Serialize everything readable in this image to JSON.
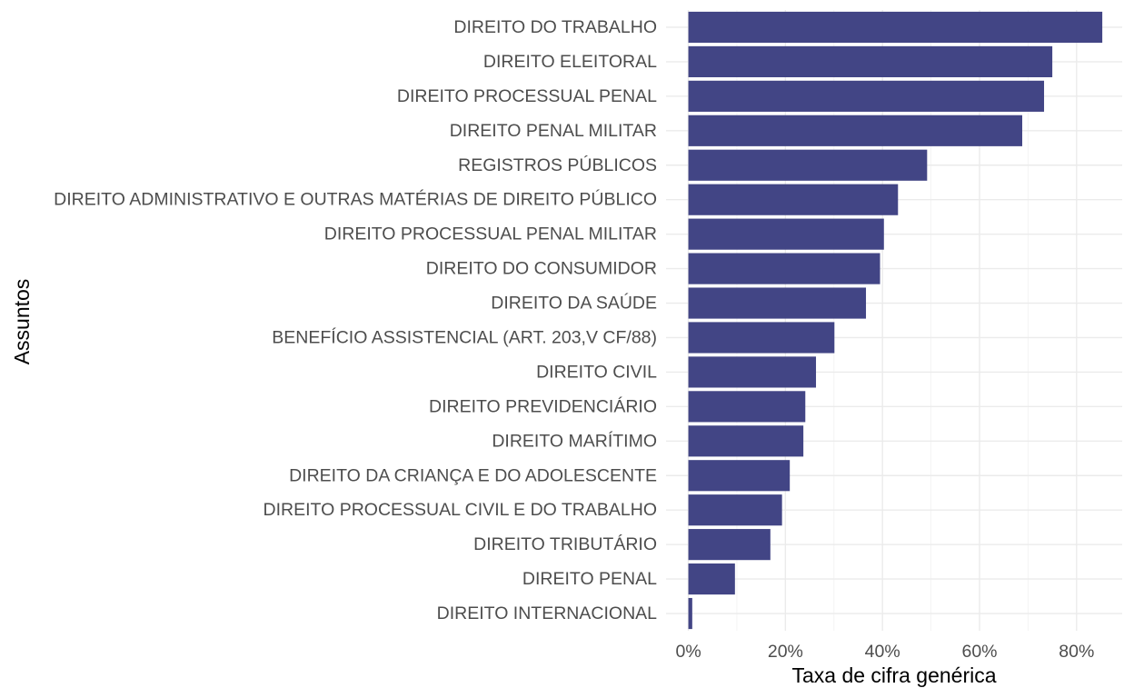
{
  "chart_data": {
    "type": "bar",
    "orientation": "horizontal",
    "categories": [
      "DIREITO DO TRABALHO",
      "DIREITO ELEITORAL",
      "DIREITO PROCESSUAL PENAL",
      "DIREITO PENAL MILITAR",
      "REGISTROS PÚBLICOS",
      "DIREITO ADMINISTRATIVO E OUTRAS MATÉRIAS DE DIREITO PÚBLICO",
      "DIREITO PROCESSUAL PENAL MILITAR",
      "DIREITO DO CONSUMIDOR",
      "DIREITO DA SAÚDE",
      "BENEFÍCIO ASSISTENCIAL (ART. 203,V CF/88)",
      "DIREITO CIVIL",
      "DIREITO PREVIDENCIÁRIO",
      "DIREITO MARÍTIMO",
      "DIREITO DA CRIANÇA E DO ADOLESCENTE",
      "DIREITO PROCESSUAL CIVIL E DO TRABALHO",
      "DIREITO TRIBUTÁRIO",
      "DIREITO PENAL",
      "DIREITO INTERNACIONAL"
    ],
    "values": [
      85.3,
      75.0,
      73.3,
      68.8,
      49.2,
      43.2,
      40.3,
      39.5,
      36.6,
      30.1,
      26.3,
      24.1,
      23.7,
      20.9,
      19.3,
      16.9,
      9.6,
      0.8
    ],
    "xlabel": "Taxa de cifra genérica",
    "ylabel": "Assuntos",
    "xlim": [
      -4.6,
      89.4
    ],
    "xticks": [
      0,
      20,
      40,
      60,
      80
    ],
    "xtick_labels": [
      "0%",
      "20%",
      "40%",
      "60%",
      "80%"
    ],
    "grid": true,
    "bar_color": "#424585"
  }
}
